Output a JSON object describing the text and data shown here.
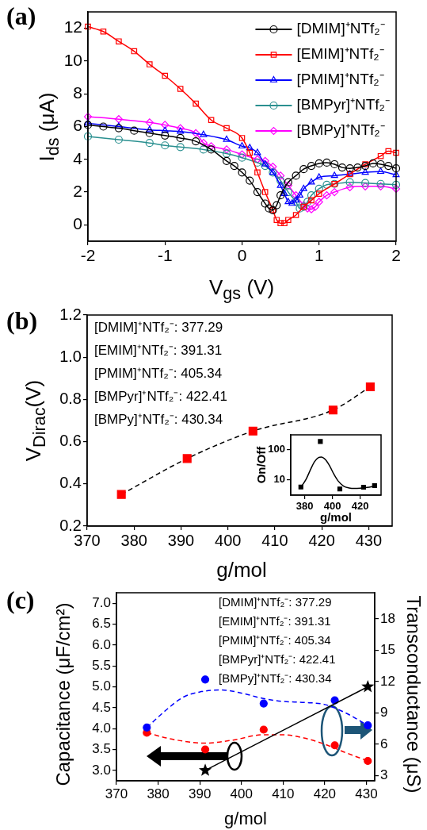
{
  "chart_data": [
    {
      "type": "line",
      "title": "(a)",
      "xlabel": "V$_{gs}$ (V)",
      "ylabel": "I$_{ds}$ (μA)",
      "xlim": [
        -2,
        2
      ],
      "xticks": [
        -2,
        -1,
        0,
        1,
        2
      ],
      "ylim": [
        -1,
        13
      ],
      "yticks": [
        0,
        2,
        4,
        6,
        8,
        10,
        12
      ],
      "legend": "top right",
      "series": [
        {
          "name": "[DMIM]⁺NTf₂⁻",
          "color": "#000000",
          "marker": "circle",
          "x": [
            -2,
            -1.8,
            -1.6,
            -1.4,
            -1.2,
            -1,
            -0.8,
            -0.6,
            -0.4,
            -0.2,
            -0.1,
            0,
            0.1,
            0.2,
            0.3,
            0.35,
            0.4,
            0.45,
            0.5,
            0.6,
            0.7,
            0.8,
            0.9,
            1,
            1.1,
            1.2,
            1.3,
            1.4,
            1.5,
            1.6,
            1.7,
            1.8,
            1.9,
            2
          ],
          "values": [
            6.1,
            6.0,
            5.9,
            5.75,
            5.6,
            5.45,
            5.3,
            5.1,
            4.6,
            3.9,
            3.6,
            3.2,
            2.7,
            2.0,
            1.3,
            1.0,
            0.9,
            1.2,
            1.8,
            2.6,
            3.0,
            3.4,
            3.6,
            3.75,
            3.8,
            3.7,
            3.5,
            3.45,
            3.5,
            3.6,
            3.75,
            3.7,
            3.6,
            3.45
          ]
        },
        {
          "name": "[EMIM]⁺NTf₂⁻",
          "color": "#ff0000",
          "marker": "square",
          "x": [
            -2,
            -1.8,
            -1.6,
            -1.4,
            -1.2,
            -1,
            -0.8,
            -0.6,
            -0.4,
            -0.2,
            0,
            0.1,
            0.2,
            0.3,
            0.4,
            0.45,
            0.5,
            0.55,
            0.6,
            0.7,
            0.8,
            0.9,
            1,
            1.2,
            1.4,
            1.6,
            1.8,
            1.9,
            2
          ],
          "values": [
            12.1,
            11.8,
            11.2,
            10.6,
            9.8,
            9.1,
            8.3,
            7.4,
            6.4,
            5.9,
            5.3,
            4.4,
            3.2,
            2.0,
            0.9,
            0.3,
            0.1,
            0.1,
            0.3,
            0.6,
            1.1,
            1.5,
            1.9,
            2.5,
            3.1,
            3.7,
            4.2,
            4.5,
            4.4
          ]
        },
        {
          "name": "[PMIM]⁺NTf₂⁻",
          "color": "#0000ff",
          "marker": "triangle",
          "x": [
            -2,
            -1.6,
            -1.2,
            -1,
            -0.8,
            -0.5,
            -0.2,
            0,
            0.1,
            0.2,
            0.3,
            0.4,
            0.5,
            0.55,
            0.6,
            0.65,
            0.7,
            0.75,
            0.8,
            0.9,
            1,
            1.2,
            1.4,
            1.6,
            1.8,
            2
          ],
          "values": [
            6.2,
            6.0,
            5.8,
            5.75,
            5.7,
            5.5,
            5.2,
            4.8,
            4.7,
            4.4,
            3.7,
            3.2,
            2.4,
            1.9,
            1.4,
            1.3,
            1.5,
            1.8,
            2.2,
            2.6,
            2.9,
            3.0,
            3.1,
            3.2,
            3.25,
            3.05
          ]
        },
        {
          "name": "[BMPyr]⁺NTf₂⁻",
          "color": "#2a9090",
          "marker": "circle",
          "x": [
            -2,
            -1.6,
            -1.2,
            -1,
            -0.8,
            -0.5,
            -0.2,
            0,
            0.2,
            0.3,
            0.4,
            0.5,
            0.6,
            0.7,
            0.75,
            0.8,
            0.85,
            0.9,
            1,
            1.1,
            1.2,
            1.4,
            1.6,
            1.8,
            2
          ],
          "values": [
            5.4,
            5.2,
            5.0,
            4.85,
            4.75,
            4.6,
            4.35,
            4.1,
            3.8,
            3.6,
            3.2,
            2.7,
            2.0,
            1.4,
            1.0,
            1.1,
            1.4,
            1.8,
            2.2,
            2.45,
            2.5,
            2.6,
            2.55,
            2.5,
            2.45
          ]
        },
        {
          "name": "[BMPy]⁺NTf₂⁻",
          "color": "#ff00ff",
          "marker": "diamond",
          "x": [
            -2,
            -1.6,
            -1.2,
            -1,
            -0.8,
            -0.6,
            -0.5,
            -0.4,
            -0.2,
            0,
            0.2,
            0.3,
            0.4,
            0.5,
            0.6,
            0.7,
            0.8,
            0.85,
            0.9,
            0.95,
            1,
            1.1,
            1.2,
            1.4,
            1.6,
            1.8,
            2
          ],
          "values": [
            6.6,
            6.45,
            6.25,
            6.1,
            5.9,
            5.6,
            5.0,
            4.8,
            4.6,
            4.3,
            4.0,
            3.9,
            3.55,
            3.0,
            2.4,
            1.8,
            1.2,
            1.0,
            0.95,
            1.1,
            1.4,
            1.8,
            2.0,
            2.3,
            2.35,
            2.35,
            2.2
          ]
        }
      ]
    },
    {
      "type": "scatter",
      "title": "(b)",
      "xlabel": "g/mol",
      "ylabel": "V$_{Dirac}$(V)",
      "xlim": [
        370,
        435
      ],
      "xticks": [
        370,
        380,
        390,
        400,
        410,
        420,
        430
      ],
      "ylim": [
        0.2,
        1.2
      ],
      "yticks": [
        0.2,
        0.4,
        0.6,
        0.8,
        {
          "value": 1,
          "label": "1.0"
        },
        1.2
      ],
      "annotations": [
        "[DMIM]⁺NTf₂⁻: 377.29",
        "[EMIM]⁺NTf₂⁻: 391.31",
        "[PMIM]⁺NTf₂⁻: 405.34",
        "[BMPyr]⁺NTf₂⁻: 422.41",
        "[BMPy]⁺NTf₂⁻: 430.34"
      ],
      "series": [
        {
          "type": "scatter",
          "color": "#ff0000",
          "marker": "square",
          "x": [
            377.29,
            391.31,
            405.34,
            422.41,
            430.34
          ],
          "values": [
            0.35,
            0.52,
            0.65,
            0.75,
            0.86
          ]
        },
        {
          "type": "line",
          "color": "#000000",
          "marker": "none",
          "line_style": "dashed",
          "x": [
            377.29,
            391.31,
            405.34,
            422.41,
            430.34
          ],
          "values": [
            0.35,
            0.52,
            0.65,
            0.75,
            0.86
          ]
        }
      ]
    },
    {
      "type": "scatter",
      "xlabel": "g/mol",
      "ylabel": "On/Off",
      "log": "y",
      "xlim": [
        370,
        435
      ],
      "xticks": [
        380,
        400,
        420
      ],
      "ylim": [
        3,
        300
      ],
      "yticks": [
        10,
        100
      ],
      "series": [
        {
          "type": "scatter",
          "color": "#000000",
          "marker": "square",
          "x": [
            377.29,
            391.31,
            405.34,
            422.41,
            430.34
          ],
          "values": [
            5.6,
            180,
            4.8,
            5.5,
            6.2
          ]
        },
        {
          "type": "line",
          "color": "#000000",
          "marker": "none",
          "x": [
            377.29,
            381,
            384,
            387,
            390,
            392,
            395,
            398,
            401,
            404,
            408,
            412,
            416,
            420,
            425,
            430.34
          ],
          "values": [
            5.5,
            10,
            20,
            38,
            53,
            55,
            45,
            28,
            15,
            9,
            6,
            5.2,
            5,
            5.1,
            5.4,
            6
          ]
        }
      ]
    },
    {
      "type": "scatter",
      "title": "(c)",
      "xlabel": "g/mol",
      "ylabel": "Capacitance (μF/cm²)",
      "y2label": "Transconductance (μS)",
      "xlim": [
        370,
        432
      ],
      "xticks": [
        370,
        380,
        390,
        400,
        410,
        420,
        430
      ],
      "ylim": [
        2.75,
        7.25
      ],
      "yticks": [
        {
          "value": 3,
          "label": "3.0"
        },
        3.5,
        {
          "value": 4,
          "label": "4.0"
        },
        4.5,
        {
          "value": 5,
          "label": "5.0"
        },
        5.5,
        {
          "value": 6,
          "label": "6.0"
        },
        6.5,
        {
          "value": 7,
          "label": "7.0"
        }
      ],
      "y2lim": [
        2.5,
        20.5
      ],
      "y2ticks": [
        3,
        6,
        9,
        12,
        15,
        18
      ],
      "annotations": [
        "[DMIM]⁺NTf₂⁻: 377.29",
        "[EMIM]⁺NTf₂⁻: 391.31",
        "[PMIM]⁺NTf₂⁻: 405.34",
        "[BMPyr]⁺NTf₂⁻: 422.41",
        "[BMPy]⁺NTf₂⁻: 430.34"
      ],
      "series": [
        {
          "type": "line",
          "color": "#000000",
          "marker": "star",
          "x": [
            391.31,
            430.34
          ],
          "values": [
            3.0,
            5.0
          ]
        },
        {
          "type": "scatter",
          "axis": "y2",
          "color": "#0000ff",
          "marker": "circle",
          "x": [
            377.29,
            391.31,
            405.34,
            422.41,
            430.34
          ],
          "values": [
            7.6,
            12.2,
            9.9,
            10.2,
            7.8
          ]
        },
        {
          "type": "scatter",
          "axis": "y2",
          "color": "#ff0000",
          "marker": "circle",
          "x": [
            377.29,
            391.31,
            405.34,
            422.41,
            430.34
          ],
          "values": [
            7.1,
            5.5,
            7.4,
            5.9,
            4.4
          ]
        },
        {
          "type": "line",
          "axis": "y2",
          "color": "#0000ff",
          "marker": "none",
          "line_style": "dashed",
          "x": [
            377.29,
            382,
            386,
            390,
            395,
            400,
            405,
            410,
            415,
            420,
            425,
            430.34
          ],
          "values": [
            7.6,
            9.3,
            10.5,
            11.0,
            11.2,
            10.9,
            10.4,
            10.1,
            10.0,
            9.8,
            9.0,
            7.8
          ]
        },
        {
          "type": "line",
          "axis": "y2",
          "color": "#ff0000",
          "marker": "none",
          "line_style": "dashed",
          "x": [
            377.29,
            382,
            386,
            391,
            398,
            405,
            410,
            415,
            420,
            425,
            430.34
          ],
          "values": [
            7.1,
            6.6,
            6.3,
            6.1,
            6.4,
            6.9,
            6.9,
            6.6,
            6.0,
            5.2,
            4.4
          ]
        }
      ]
    }
  ]
}
